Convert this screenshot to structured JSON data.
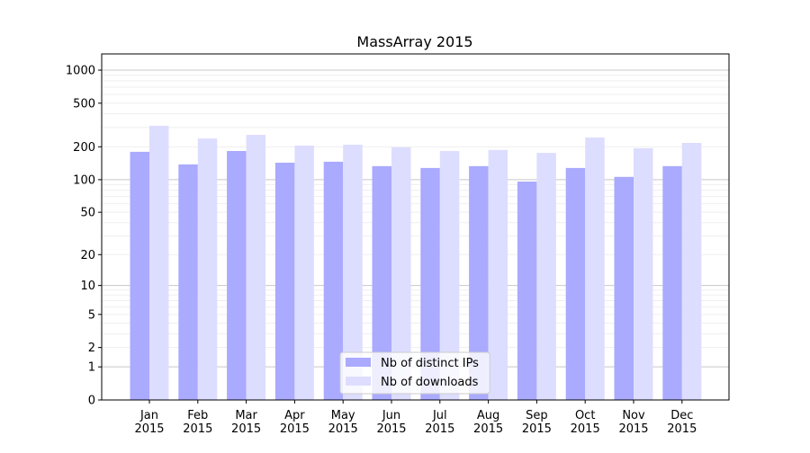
{
  "chart_data": {
    "type": "bar",
    "title": "MassArray 2015",
    "xlabel": "",
    "ylabel": "",
    "yscale": "symlog (log10(1+y))",
    "ylim": [
      0,
      1300
    ],
    "yticks": [
      0,
      1,
      2,
      5,
      10,
      20,
      50,
      100,
      200,
      500,
      1000
    ],
    "grid": true,
    "legend_position": "bottom-center",
    "categories": [
      "Jan\n2015",
      "Feb\n2015",
      "Mar\n2015",
      "Apr\n2015",
      "May\n2015",
      "Jun\n2015",
      "Jul\n2015",
      "Aug\n2015",
      "Sep\n2015",
      "Oct\n2015",
      "Nov\n2015",
      "Dec\n2015"
    ],
    "series": [
      {
        "name": "Nb of distinct IPs",
        "color": "#aaaaff",
        "values": [
          180,
          138,
          183,
          143,
          146,
          133,
          128,
          133,
          96,
          128,
          106,
          133
        ]
      },
      {
        "name": "Nb of downloads",
        "color": "#ddddff",
        "values": [
          311,
          238,
          257,
          205,
          209,
          198,
          183,
          187,
          176,
          243,
          194,
          217
        ]
      }
    ]
  }
}
